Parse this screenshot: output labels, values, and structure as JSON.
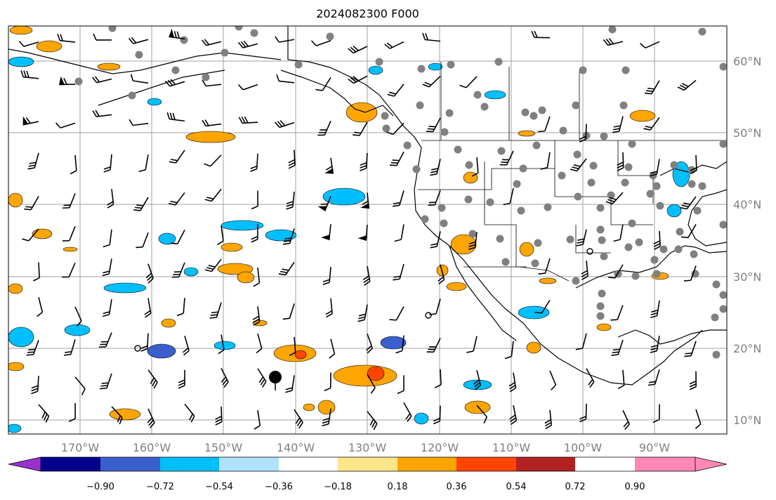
{
  "title": "2024082300 F000",
  "lat_labels": [
    "60°N",
    "50°N",
    "40°N",
    "30°N",
    "20°N",
    "10°N"
  ],
  "lon_labels": [
    "170°W",
    "160°W",
    "150°W",
    "140°W",
    "130°W",
    "120°W",
    "110°W",
    "100°W",
    "90°W"
  ],
  "colorbar": {
    "ticks": [
      "−0.90",
      "−0.72",
      "−0.54",
      "−0.36",
      "−0.18",
      "0.18",
      "0.36",
      "0.54",
      "0.72",
      "0.90"
    ],
    "colors": [
      "#9932cc",
      "#00008b",
      "#3a5fcd",
      "#00bfff",
      "#b0e2ff",
      "#ffffff",
      "#fde68a",
      "#ffa500",
      "#ff4500",
      "#b22222",
      "#ff89b4"
    ]
  },
  "map_colors": {
    "grid": "#a0a0a0",
    "land_line": "#000000",
    "dot": "#808080"
  }
}
